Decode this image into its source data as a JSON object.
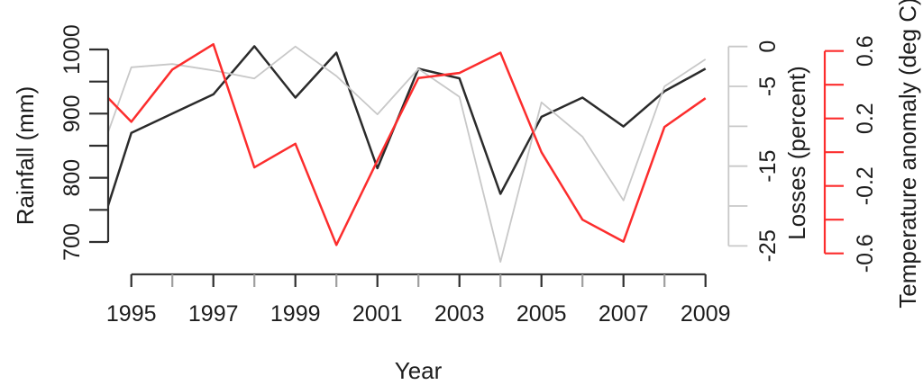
{
  "figure": {
    "background": "#ffffff",
    "description": "R-style line chart with three overlaid series sharing one x axis and three separate y axes"
  },
  "chart_data": {
    "type": "line",
    "title": "",
    "x": [
      1994,
      1995,
      1996,
      1997,
      1998,
      1999,
      2000,
      2001,
      2002,
      2003,
      2004,
      2005,
      2006,
      2007,
      2008,
      2009
    ],
    "series": [
      {
        "name": "Rainfall",
        "axis": "rainfall",
        "color": "#2b2b2b",
        "width": 2.5,
        "values": [
          670,
          870,
          900,
          930,
          1005,
          925,
          995,
          815,
          970,
          955,
          775,
          895,
          925,
          880,
          935,
          970
        ]
      },
      {
        "name": "Losses",
        "axis": "losses",
        "color": "#c8c8c8",
        "width": 1.8,
        "values": [
          -17,
          -2.6,
          -2.2,
          -3,
          -4,
          0,
          -3.7,
          -8.5,
          -2.8,
          -6.3,
          -27,
          -7,
          -11.3,
          -19.3,
          -5,
          -1.6
        ]
      },
      {
        "name": "Temperature anomaly",
        "axis": "temperature",
        "color": "#fc2d2d",
        "width": 2.5,
        "values": [
          0.43,
          0.18,
          0.49,
          0.64,
          -0.09,
          0.05,
          -0.55,
          -0.05,
          0.44,
          0.47,
          0.59,
          0,
          -0.4,
          -0.53,
          0.15,
          0.32
        ]
      }
    ],
    "axes": {
      "x": {
        "title": "Year",
        "range": [
          1995,
          2009
        ],
        "ticks": [
          {
            "v": 1995,
            "label": "1995"
          },
          {
            "v": 1996,
            "label": ""
          },
          {
            "v": 1997,
            "label": "1997"
          },
          {
            "v": 1998,
            "label": ""
          },
          {
            "v": 1999,
            "label": "1999"
          },
          {
            "v": 2000,
            "label": ""
          },
          {
            "v": 2001,
            "label": "2001"
          },
          {
            "v": 2002,
            "label": ""
          },
          {
            "v": 2003,
            "label": "2003"
          },
          {
            "v": 2004,
            "label": ""
          },
          {
            "v": 2005,
            "label": "2005"
          },
          {
            "v": 2006,
            "label": ""
          },
          {
            "v": 2007,
            "label": "2007"
          },
          {
            "v": 2008,
            "label": ""
          },
          {
            "v": 2009,
            "label": "2009"
          }
        ],
        "line_color": "#3a3a3a",
        "labeled_tick_color": "#2e2e2e",
        "minor_tick_color": "#9e9e9e",
        "text_color": "#1d1d1d"
      },
      "rainfall": {
        "title": "Rainfall (mm)",
        "side": "left",
        "range": [
          700,
          1000
        ],
        "ticks": [
          {
            "v": 700,
            "label": "700"
          },
          {
            "v": 750,
            "label": ""
          },
          {
            "v": 800,
            "label": "800"
          },
          {
            "v": 850,
            "label": ""
          },
          {
            "v": 900,
            "label": "900"
          },
          {
            "v": 950,
            "label": ""
          },
          {
            "v": 1000,
            "label": "1000"
          }
        ],
        "line_color": "#2e2e2e",
        "text_color": "#1d1d1d"
      },
      "losses": {
        "title": "Losses (percent)",
        "side": "right-inner",
        "range": [
          -25,
          0
        ],
        "ticks": [
          {
            "v": 0,
            "label": "0"
          },
          {
            "v": -5,
            "label": "-5"
          },
          {
            "v": -10,
            "label": ""
          },
          {
            "v": -15,
            "label": "-15"
          },
          {
            "v": -20,
            "label": ""
          },
          {
            "v": -25,
            "label": "-25"
          }
        ],
        "line_color": "#c8c8c8",
        "text_color": "#1d1d1d"
      },
      "temperature": {
        "title": "Temperature anomaly (deg C)",
        "side": "right-outer",
        "range": [
          -0.6,
          0.6
        ],
        "ticks": [
          {
            "v": 0.6,
            "label": "0.6"
          },
          {
            "v": 0.4,
            "label": ""
          },
          {
            "v": 0.2,
            "label": "0.2"
          },
          {
            "v": 0,
            "label": ""
          },
          {
            "v": -0.2,
            "label": "-0.2"
          },
          {
            "v": -0.4,
            "label": ""
          },
          {
            "v": -0.6,
            "label": "-0.6"
          }
        ],
        "line_color": "#fc2d2d",
        "text_color": "#1d1d1d"
      }
    },
    "grid": false,
    "legend": "none"
  }
}
